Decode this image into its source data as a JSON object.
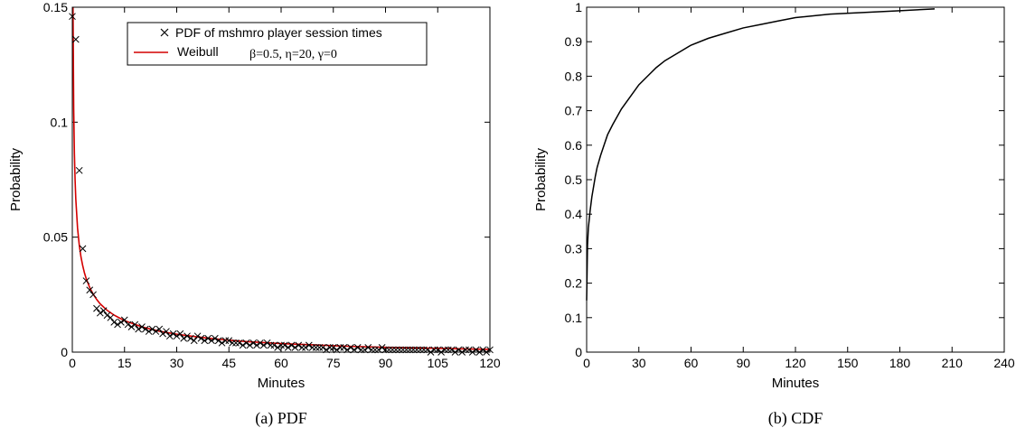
{
  "colors": {
    "axis": "#000000",
    "pdf_marker": "#000000",
    "weibull_line": "#d40000",
    "cdf_line": "#000000"
  },
  "chart_data": [
    {
      "id": "pdf",
      "type": "scatter",
      "caption": "(a) PDF",
      "xlabel": "Minutes",
      "ylabel": "Probability",
      "xlim": [
        0,
        120
      ],
      "ylim": [
        0,
        0.15
      ],
      "xticks": [
        "0",
        "15",
        "30",
        "45",
        "60",
        "75",
        "90",
        "105",
        "120"
      ],
      "yticks": [
        "0",
        "0.05",
        "0.1",
        "0.15"
      ],
      "legend_position": "top-right",
      "series": [
        {
          "name": "PDF of mshmro player session times",
          "marker": "x",
          "x": [
            0,
            1,
            2,
            3,
            4,
            5,
            6,
            7,
            8,
            9,
            10,
            11,
            12,
            13,
            14,
            15,
            16,
            17,
            18,
            19,
            20,
            21,
            22,
            23,
            24,
            25,
            26,
            27,
            28,
            29,
            30,
            31,
            32,
            33,
            34,
            35,
            36,
            37,
            38,
            39,
            40,
            41,
            42,
            43,
            44,
            45,
            46,
            47,
            48,
            49,
            50,
            51,
            52,
            53,
            54,
            55,
            56,
            57,
            58,
            59,
            60,
            61,
            62,
            63,
            64,
            65,
            66,
            67,
            68,
            69,
            70,
            71,
            72,
            73,
            74,
            75,
            76,
            77,
            78,
            79,
            80,
            81,
            82,
            83,
            84,
            85,
            86,
            87,
            88,
            89,
            90,
            91,
            92,
            93,
            94,
            95,
            96,
            97,
            98,
            99,
            100,
            101,
            102,
            103,
            104,
            105,
            106,
            107,
            108,
            109,
            110,
            111,
            112,
            113,
            114,
            115,
            116,
            117,
            118,
            119,
            120
          ],
          "y": [
            0.146,
            0.136,
            0.079,
            0.045,
            0.031,
            0.027,
            0.025,
            0.019,
            0.017,
            0.018,
            0.016,
            0.015,
            0.013,
            0.012,
            0.013,
            0.014,
            0.012,
            0.011,
            0.012,
            0.01,
            0.011,
            0.01,
            0.009,
            0.01,
            0.009,
            0.01,
            0.008,
            0.009,
            0.007,
            0.008,
            0.007,
            0.008,
            0.006,
            0.007,
            0.006,
            0.005,
            0.007,
            0.006,
            0.005,
            0.006,
            0.005,
            0.006,
            0.005,
            0.004,
            0.005,
            0.005,
            0.004,
            0.004,
            0.004,
            0.003,
            0.004,
            0.003,
            0.004,
            0.003,
            0.004,
            0.003,
            0.004,
            0.003,
            0.003,
            0.002,
            0.003,
            0.003,
            0.002,
            0.003,
            0.002,
            0.003,
            0.002,
            0.002,
            0.003,
            0.002,
            0.002,
            0.002,
            0.002,
            0.001,
            0.002,
            0.002,
            0.001,
            0.002,
            0.002,
            0.001,
            0.002,
            0.001,
            0.002,
            0.001,
            0.001,
            0.002,
            0.001,
            0.001,
            0.001,
            0.002,
            0.001,
            0.001,
            0.001,
            0.001,
            0.001,
            0.001,
            0.001,
            0.001,
            0.001,
            0.001,
            0.001,
            0.001,
            0.001,
            0.0,
            0.001,
            0.001,
            0.0,
            0.001,
            0.001,
            0.001,
            0.0,
            0.001,
            0.0,
            0.001,
            0.001,
            0.0,
            0.001,
            0.0,
            0.001,
            0.0,
            0.001
          ]
        },
        {
          "name": "Weibull",
          "params": "β=0.5, η=20, γ=0",
          "type": "line",
          "x": [
            0.2,
            0.4,
            0.6,
            0.8,
            1,
            1.5,
            2,
            2.5,
            3,
            3.5,
            4,
            5,
            6,
            7,
            8,
            10,
            12,
            15,
            20,
            25,
            30,
            35,
            40,
            45,
            50,
            60,
            70,
            80,
            90,
            100,
            110,
            120
          ],
          "y": [
            0.1497,
            0.1058,
            0.0863,
            0.0747,
            0.0666,
            0.054,
            0.0465,
            0.0413,
            0.0375,
            0.0344,
            0.0319,
            0.0281,
            0.0252,
            0.0229,
            0.021,
            0.0182,
            0.0161,
            0.0137,
            0.011,
            0.0091,
            0.0078,
            0.0068,
            0.0059,
            0.0052,
            0.0046,
            0.0037,
            0.0031,
            0.0025,
            0.0021,
            0.0018,
            0.0015,
            0.0012
          ]
        }
      ]
    },
    {
      "id": "cdf",
      "type": "line",
      "caption": "(b) CDF",
      "xlabel": "Minutes",
      "ylabel": "Probability",
      "xlim": [
        0,
        240
      ],
      "ylim": [
        0,
        1
      ],
      "xticks": [
        "0",
        "30",
        "60",
        "90",
        "120",
        "150",
        "180",
        "210",
        "240"
      ],
      "yticks": [
        "0",
        "0.1",
        "0.2",
        "0.3",
        "0.4",
        "0.5",
        "0.6",
        "0.7",
        "0.8",
        "0.9",
        "1"
      ],
      "series": [
        {
          "name": "",
          "x": [
            0,
            0.5,
            1,
            2,
            3,
            4,
            5,
            6,
            8,
            10,
            12,
            15,
            20,
            25,
            30,
            35,
            40,
            45,
            50,
            60,
            70,
            80,
            90,
            100,
            110,
            120,
            140,
            160,
            180,
            200
          ],
          "y": [
            0.15,
            0.31,
            0.36,
            0.41,
            0.45,
            0.48,
            0.51,
            0.535,
            0.57,
            0.6,
            0.63,
            0.66,
            0.705,
            0.74,
            0.775,
            0.8,
            0.825,
            0.845,
            0.86,
            0.89,
            0.91,
            0.925,
            0.94,
            0.95,
            0.96,
            0.97,
            0.98,
            0.985,
            0.99,
            0.995
          ]
        }
      ]
    }
  ]
}
